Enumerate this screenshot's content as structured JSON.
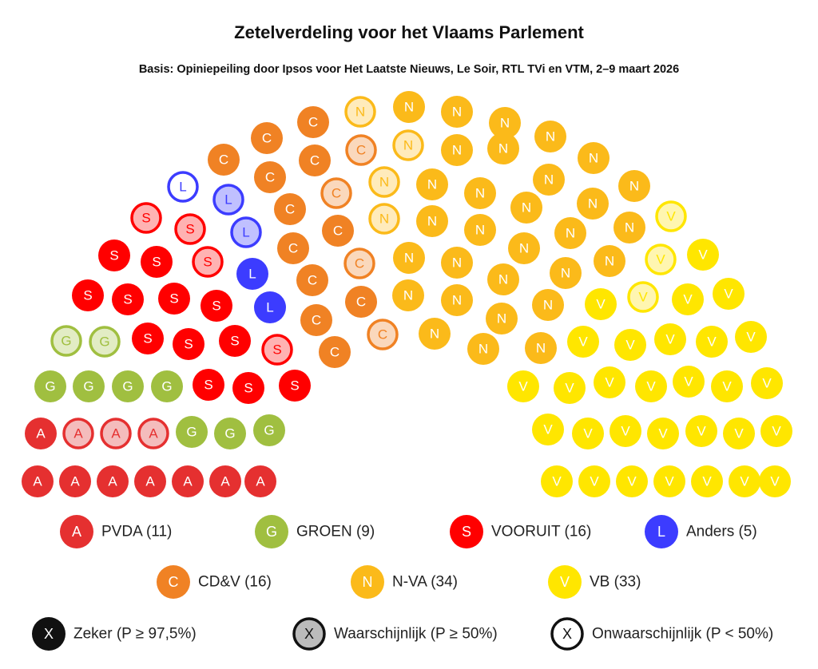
{
  "chart_data": {
    "type": "parliament",
    "title": "Zetelverdeling voor het Vlaams Parlement",
    "subtitle": "Basis: Opiniepeiling door Ipsos voor Het Laatste Nieuws, Le Soir, RTL TVi en VTM, 2–9 maart 2026",
    "total_seats": 124,
    "parties": [
      {
        "letter": "A",
        "name": "PVDA (11)",
        "seats": 11,
        "color": "#e53030",
        "light": "#f4bcbc",
        "sure": 8,
        "probable": 3,
        "improbable": 0
      },
      {
        "letter": "G",
        "name": "GROEN (9)",
        "seats": 9,
        "color": "#a0bf40",
        "light": "#e2ecc4",
        "sure": 7,
        "probable": 2,
        "improbable": 0
      },
      {
        "letter": "S",
        "name": "VOORUIT (16)",
        "seats": 16,
        "color": "#ff0000",
        "light": "#ffb2b2",
        "sure": 12,
        "probable": 4,
        "improbable": 0
      },
      {
        "letter": "L",
        "name": "Anders (5)",
        "seats": 5,
        "color": "#3c3cff",
        "light": "#c0c0ff",
        "sure": 2,
        "probable": 2,
        "improbable": 1
      },
      {
        "letter": "C",
        "name": "CD&V (16)",
        "seats": 16,
        "color": "#f08224",
        "light": "#fad8bc",
        "sure": 12,
        "probable": 4,
        "improbable": 0
      },
      {
        "letter": "N",
        "name": "N-VA (34)",
        "seats": 34,
        "color": "#fbba1a",
        "light": "#ffebbb",
        "sure": 30,
        "probable": 4,
        "improbable": 0
      },
      {
        "letter": "V",
        "name": "VB (33)",
        "seats": 33,
        "color": "#ffe600",
        "light": "#fff6b0",
        "sure": 30,
        "probable": 3,
        "improbable": 0
      }
    ],
    "status_legend": [
      {
        "letter": "X",
        "label": "Zeker (P ≥ 97,5%)",
        "key": "sure"
      },
      {
        "letter": "X",
        "label": "Waarschijnlijk (P ≥ 50%)",
        "key": "probable"
      },
      {
        "letter": "X",
        "label": "Onwaarschijnlijk (P < 50%)",
        "key": "improbable"
      }
    ]
  }
}
